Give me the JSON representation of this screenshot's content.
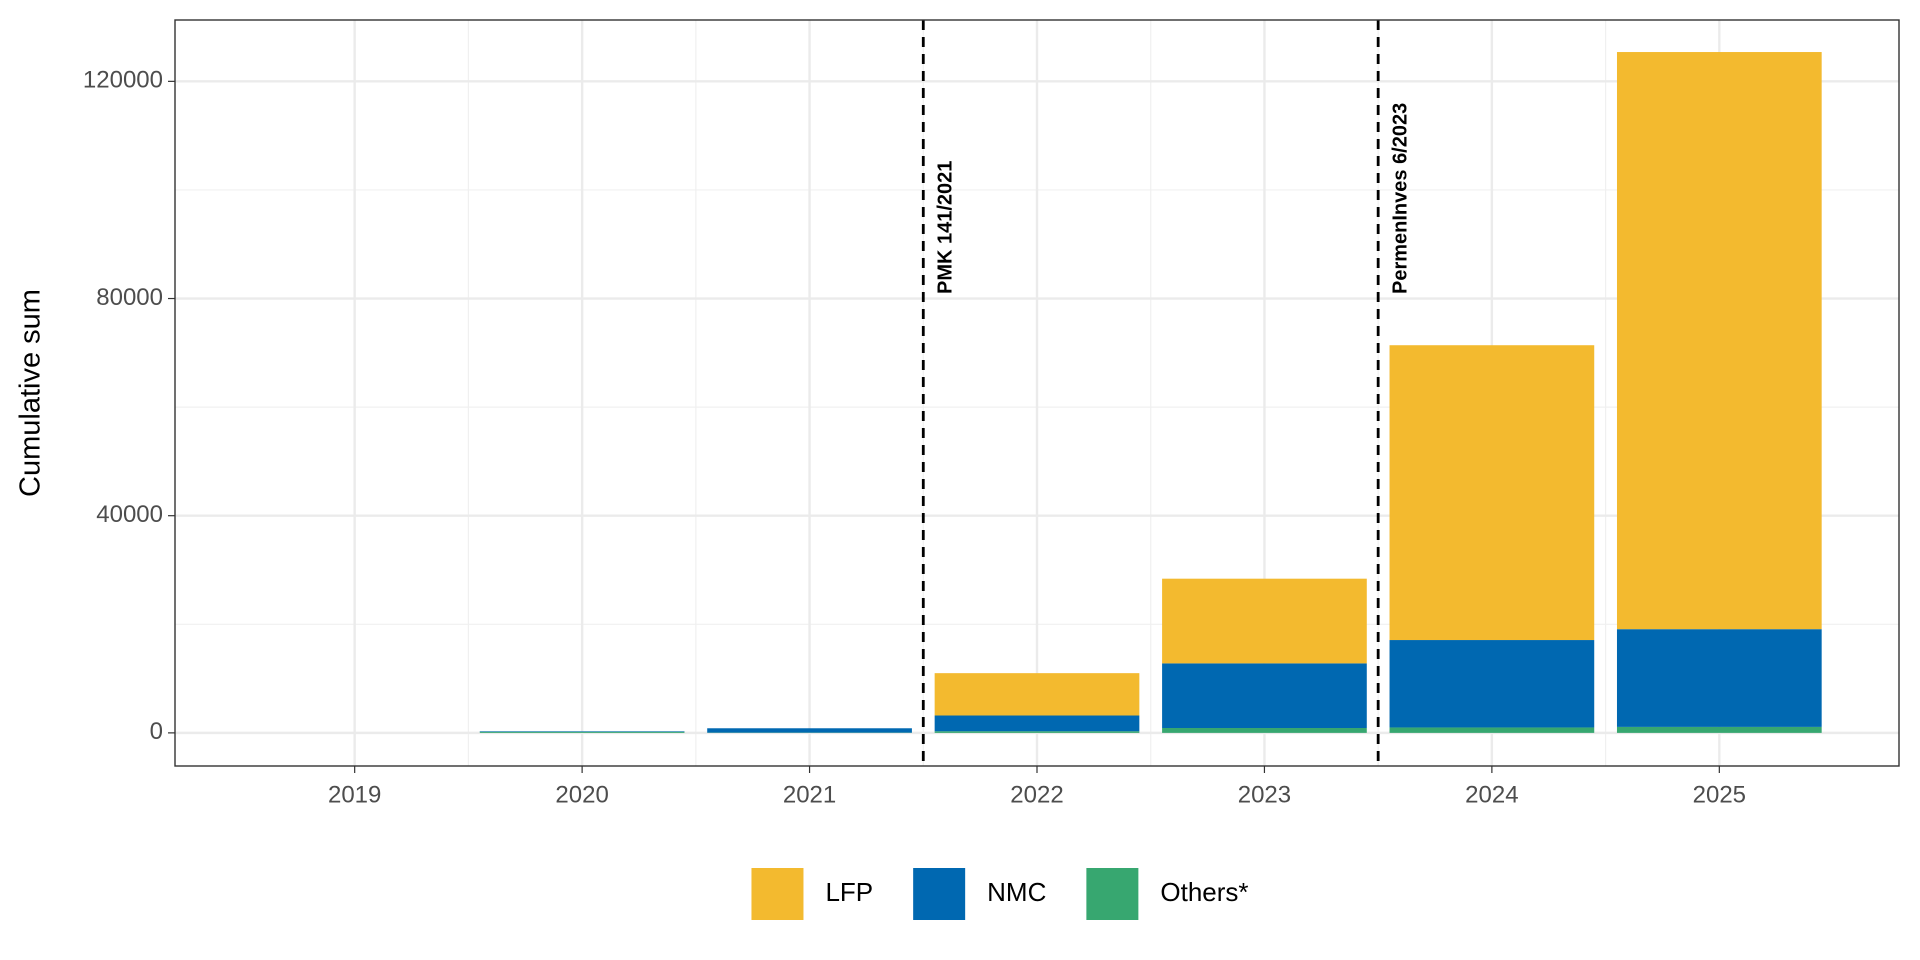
{
  "chart_data": {
    "type": "stacked-bar",
    "y_label": "Cumulative sum",
    "x": [
      2019,
      2020,
      2021,
      2022,
      2023,
      2024,
      2025
    ],
    "xlim": [
      2018.21,
      2025.79
    ],
    "xticks": [
      2019,
      2020,
      2021,
      2022,
      2023,
      2024,
      2025
    ],
    "ylim": [
      -6100,
      131300
    ],
    "yticks": [
      0,
      40000,
      80000,
      120000
    ],
    "grid": true,
    "legend": "bottom",
    "series": [
      {
        "name": "Others*",
        "color": "#37a770",
        "values": [
          0,
          200,
          50,
          300,
          900,
          1000,
          1100
        ]
      },
      {
        "name": "NMC",
        "color": "#0068b1",
        "values": [
          0,
          100,
          800,
          2900,
          11900,
          16100,
          18000
        ]
      },
      {
        "name": "LFP",
        "color": "#f3ba2f",
        "values": [
          0,
          0,
          0,
          7800,
          15600,
          54300,
          106300
        ]
      }
    ],
    "annotations": [
      {
        "x": 2021.5,
        "label": "PMK 141/2021"
      },
      {
        "x": 2023.5,
        "label": "PermenInves 6/2023"
      }
    ]
  }
}
